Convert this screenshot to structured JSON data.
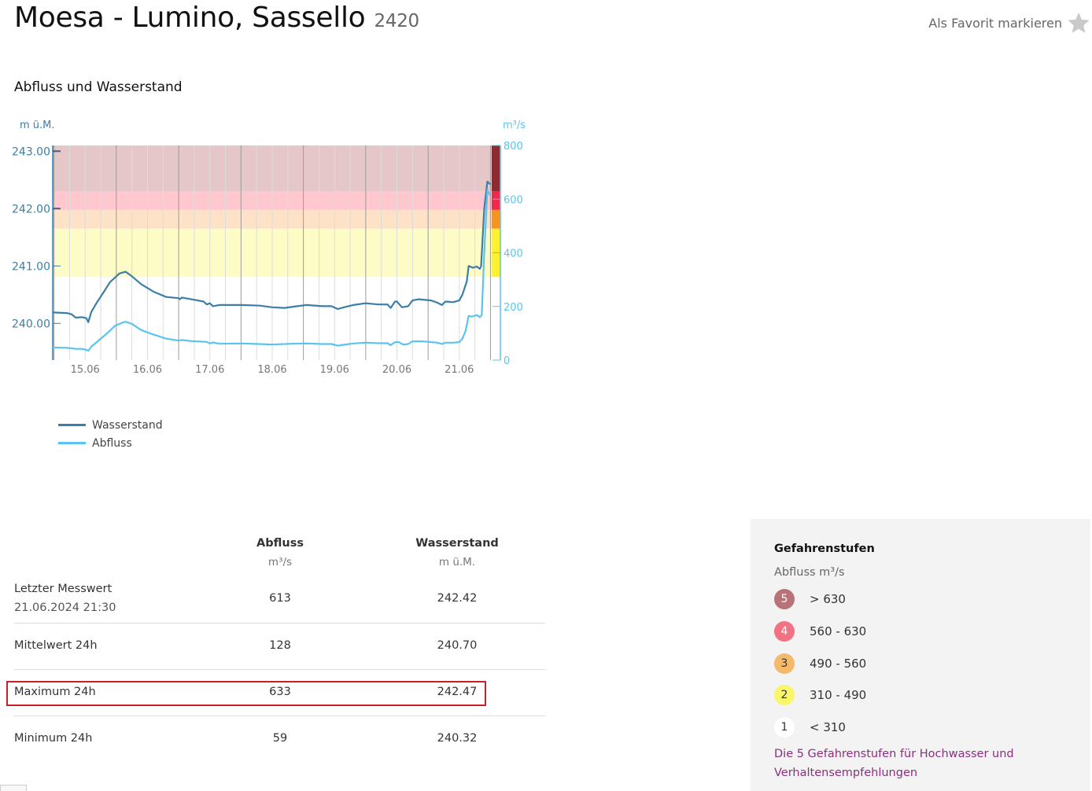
{
  "header": {
    "title": "Moesa - Lumino, Sassello",
    "station_id": "2420",
    "favorite_label": "Als Favorit markieren",
    "favorite_icon": "star-icon"
  },
  "section_title": "Abfluss und Wasserstand",
  "chart_data": {
    "type": "line",
    "title": "Abfluss und Wasserstand",
    "left_axis": {
      "label": "m ü.M.",
      "ticks": [
        "243.00",
        "242.00",
        "241.00",
        "240.00"
      ],
      "range": [
        239.36,
        243.1
      ]
    },
    "right_axis": {
      "label": "m³/s",
      "ticks": [
        "800",
        "600",
        "400",
        "200",
        "0"
      ],
      "range": [
        0,
        800
      ]
    },
    "x_axis": {
      "ticks": [
        "15.06",
        "16.06",
        "17.06",
        "18.06",
        "19.06",
        "20.06",
        "21.06"
      ],
      "range_days": [
        14.48,
        21.52
      ]
    },
    "grid": true,
    "legend_position": "bottom-left",
    "danger_bands": [
      {
        "level": 5,
        "from": 630,
        "to": 800,
        "fill": "#e5c6c9",
        "bar": "#8f2a2e"
      },
      {
        "level": 4,
        "from": 560,
        "to": 630,
        "fill": "#ffc8cf",
        "bar": "#f0284a"
      },
      {
        "level": 3,
        "from": 490,
        "to": 560,
        "fill": "#fde2c8",
        "bar": "#f7941d"
      },
      {
        "level": 2,
        "from": 310,
        "to": 490,
        "fill": "#fdfcc7",
        "bar": "#fff22c"
      }
    ],
    "series": [
      {
        "name": "Wasserstand",
        "axis": "left",
        "color": "#3b7fa6",
        "points": [
          [
            14.48,
            240.19
          ],
          [
            14.7,
            240.18
          ],
          [
            14.78,
            240.16
          ],
          [
            14.85,
            240.1
          ],
          [
            14.95,
            240.11
          ],
          [
            15.02,
            240.09
          ],
          [
            15.05,
            240.02
          ],
          [
            15.1,
            240.2
          ],
          [
            15.18,
            240.35
          ],
          [
            15.3,
            240.55
          ],
          [
            15.4,
            240.72
          ],
          [
            15.48,
            240.8
          ],
          [
            15.55,
            240.87
          ],
          [
            15.65,
            240.9
          ],
          [
            15.75,
            240.82
          ],
          [
            15.9,
            240.68
          ],
          [
            16.1,
            240.55
          ],
          [
            16.3,
            240.46
          ],
          [
            16.5,
            240.44
          ],
          [
            16.52,
            240.42
          ],
          [
            16.55,
            240.45
          ],
          [
            16.7,
            240.42
          ],
          [
            16.9,
            240.38
          ],
          [
            16.95,
            240.33
          ],
          [
            17.0,
            240.35
          ],
          [
            17.05,
            240.3
          ],
          [
            17.15,
            240.32
          ],
          [
            17.5,
            240.32
          ],
          [
            17.8,
            240.31
          ],
          [
            18.0,
            240.28
          ],
          [
            18.2,
            240.27
          ],
          [
            18.4,
            240.3
          ],
          [
            18.55,
            240.32
          ],
          [
            18.8,
            240.3
          ],
          [
            18.95,
            240.3
          ],
          [
            19.05,
            240.25
          ],
          [
            19.15,
            240.28
          ],
          [
            19.3,
            240.32
          ],
          [
            19.5,
            240.35
          ],
          [
            19.7,
            240.33
          ],
          [
            19.85,
            240.33
          ],
          [
            19.9,
            240.27
          ],
          [
            19.97,
            240.38
          ],
          [
            20.0,
            240.38
          ],
          [
            20.08,
            240.28
          ],
          [
            20.18,
            240.3
          ],
          [
            20.25,
            240.4
          ],
          [
            20.35,
            240.42
          ],
          [
            20.55,
            240.4
          ],
          [
            20.65,
            240.36
          ],
          [
            20.72,
            240.32
          ],
          [
            20.78,
            240.38
          ],
          [
            20.9,
            240.37
          ],
          [
            21.0,
            240.4
          ],
          [
            21.05,
            240.5
          ],
          [
            21.12,
            240.73
          ],
          [
            21.15,
            241.0
          ],
          [
            21.22,
            240.97
          ],
          [
            21.28,
            240.99
          ],
          [
            21.33,
            240.95
          ],
          [
            21.35,
            241.0
          ],
          [
            21.4,
            242.0
          ],
          [
            21.45,
            242.47
          ],
          [
            21.5,
            242.42
          ]
        ]
      },
      {
        "name": "Abfluss",
        "axis": "right",
        "color": "#5bc4ee",
        "points": [
          [
            14.48,
            47
          ],
          [
            14.7,
            46
          ],
          [
            14.78,
            44
          ],
          [
            14.85,
            42
          ],
          [
            14.95,
            42
          ],
          [
            15.02,
            38
          ],
          [
            15.05,
            35
          ],
          [
            15.1,
            50
          ],
          [
            15.2,
            70
          ],
          [
            15.35,
            100
          ],
          [
            15.48,
            128
          ],
          [
            15.6,
            140
          ],
          [
            15.65,
            143
          ],
          [
            15.75,
            135
          ],
          [
            15.9,
            112
          ],
          [
            16.1,
            95
          ],
          [
            16.3,
            80
          ],
          [
            16.5,
            73
          ],
          [
            16.55,
            75
          ],
          [
            16.7,
            71
          ],
          [
            16.95,
            68
          ],
          [
            17.0,
            62
          ],
          [
            17.05,
            66
          ],
          [
            17.15,
            61
          ],
          [
            17.5,
            62
          ],
          [
            17.8,
            60
          ],
          [
            18.0,
            58
          ],
          [
            18.3,
            61
          ],
          [
            18.55,
            62
          ],
          [
            18.8,
            60
          ],
          [
            18.95,
            60
          ],
          [
            19.05,
            54
          ],
          [
            19.15,
            57
          ],
          [
            19.3,
            62
          ],
          [
            19.5,
            65
          ],
          [
            19.7,
            63
          ],
          [
            19.85,
            63
          ],
          [
            19.9,
            56
          ],
          [
            19.97,
            67
          ],
          [
            20.03,
            67
          ],
          [
            20.1,
            58
          ],
          [
            20.18,
            60
          ],
          [
            20.25,
            70
          ],
          [
            20.4,
            70
          ],
          [
            20.55,
            67
          ],
          [
            20.65,
            65
          ],
          [
            20.72,
            60
          ],
          [
            20.78,
            65
          ],
          [
            20.9,
            65
          ],
          [
            21.0,
            67
          ],
          [
            21.05,
            80
          ],
          [
            21.1,
            108
          ],
          [
            21.15,
            165
          ],
          [
            21.2,
            162
          ],
          [
            21.28,
            168
          ],
          [
            21.33,
            160
          ],
          [
            21.36,
            168
          ],
          [
            21.4,
            400
          ],
          [
            21.45,
            633
          ],
          [
            21.5,
            613
          ]
        ]
      }
    ]
  },
  "legend": [
    {
      "name": "Wasserstand",
      "color": "#3b7fa6"
    },
    {
      "name": "Abfluss",
      "color": "#5bc4ee"
    }
  ],
  "table": {
    "columns": [
      {
        "name": "Abfluss",
        "unit": "m³/s"
      },
      {
        "name": "Wasserstand",
        "unit": "m ü.M."
      }
    ],
    "rows": [
      {
        "label": "Letzter Messwert",
        "sublabel": "21.06.2024 21:30",
        "abfluss": "613",
        "wasserstand": "242.42"
      },
      {
        "label": "Mittelwert 24h",
        "abfluss": "128",
        "wasserstand": "240.70"
      },
      {
        "label": "Maximum 24h",
        "abfluss": "633",
        "wasserstand": "242.47",
        "highlighted": true
      },
      {
        "label": "Minimum 24h",
        "abfluss": "59",
        "wasserstand": "240.32"
      }
    ]
  },
  "danger_levels": {
    "title": "Gefahrenstufen",
    "unit_label": "Abfluss m³/s",
    "levels": [
      {
        "level": "5",
        "range": "> 630",
        "color": "#b97378",
        "text_color": "#ffffff"
      },
      {
        "level": "4",
        "range": "560 - 630",
        "color": "#f07283",
        "text_color": "#ffffff"
      },
      {
        "level": "3",
        "range": "490 - 560",
        "color": "#f5b96b",
        "text_color": "#333333"
      },
      {
        "level": "2",
        "range": "310 - 490",
        "color": "#f9f66a",
        "text_color": "#333333"
      },
      {
        "level": "1",
        "range": "< 310",
        "color": "#ffffff",
        "text_color": "#333333"
      }
    ],
    "link": "Die 5 Gefahrenstufen für Hochwasser und Verhaltensempfehlungen"
  }
}
